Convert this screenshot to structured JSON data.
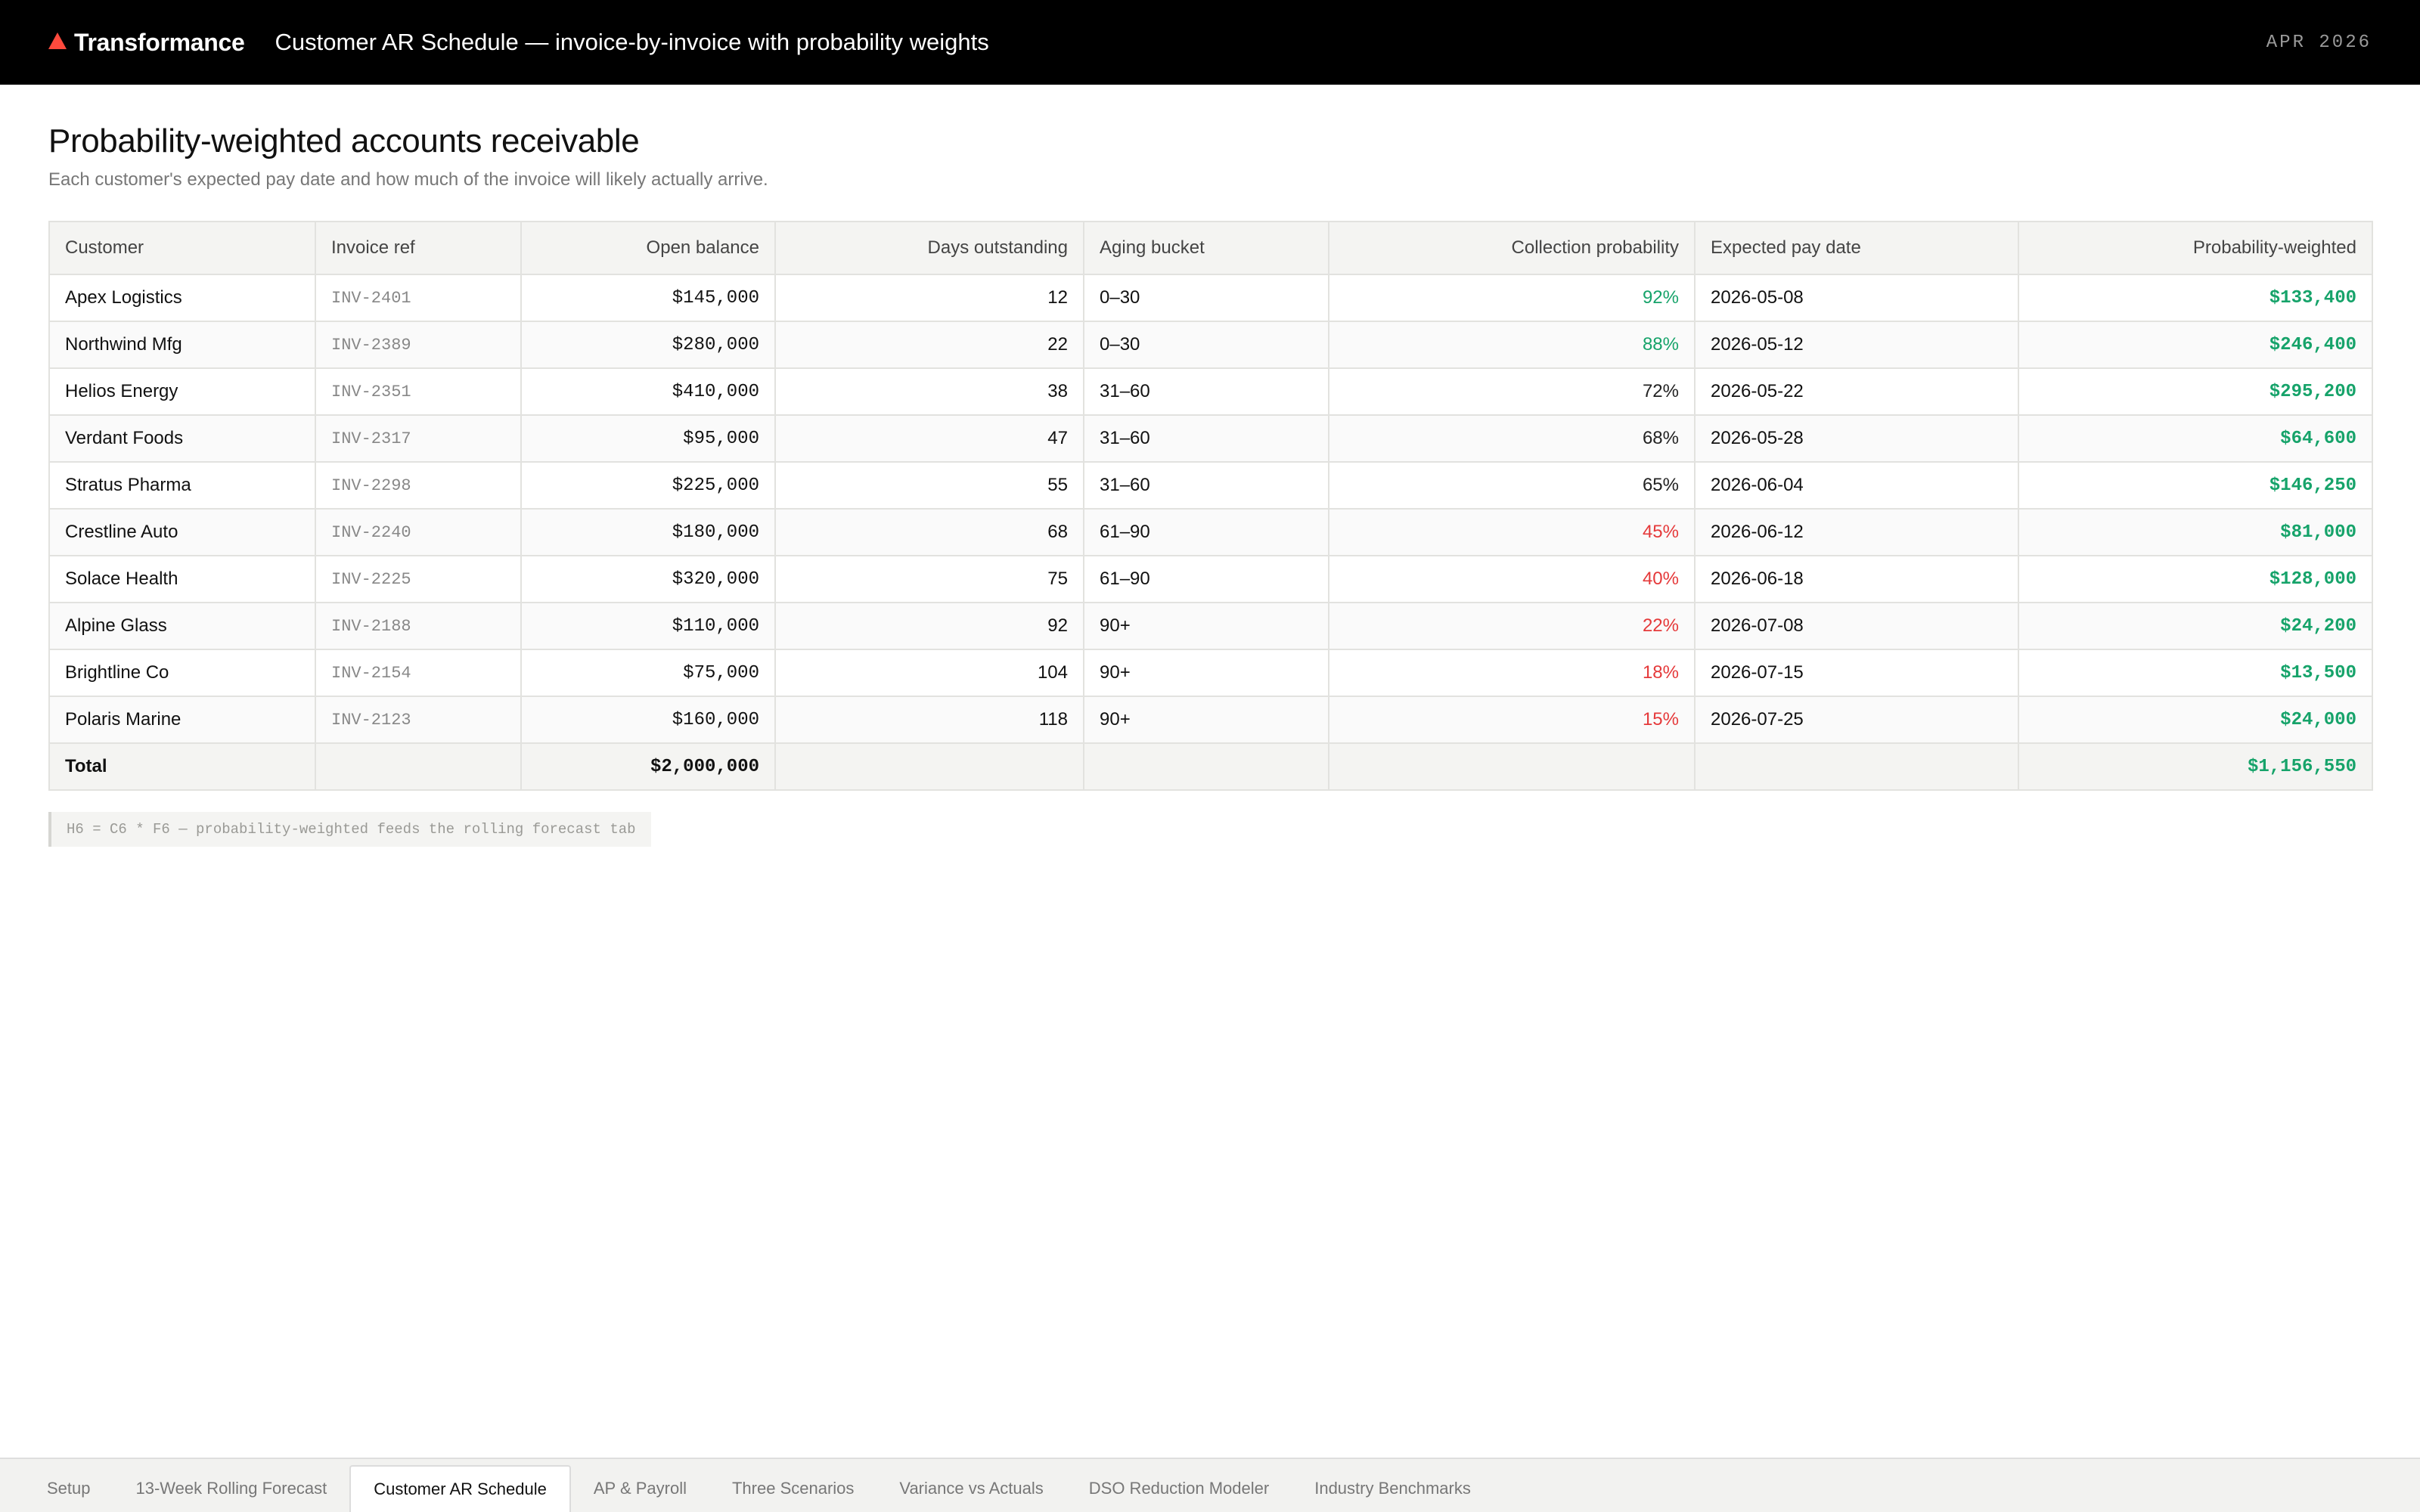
{
  "header": {
    "brand": "Transformance",
    "title": "Customer AR Schedule — invoice-by-invoice with probability weights",
    "date": "APR 2026"
  },
  "page": {
    "title": "Probability-weighted accounts receivable",
    "subtitle": "Each customer's expected pay date and how much of the invoice will likely actually arrive."
  },
  "colors": {
    "green": "#16a36a",
    "red": "#e5393a",
    "neutral": "#222222"
  },
  "table": {
    "columns": [
      "Customer",
      "Invoice ref",
      "Open balance",
      "Days outstanding",
      "Aging bucket",
      "Collection probability",
      "Expected pay date",
      "Probability-weighted"
    ],
    "rows": [
      {
        "customer": "Apex Logistics",
        "ref": "INV-2401",
        "balance": "$145,000",
        "days": "12",
        "bucket": "0–30",
        "prob": "92%",
        "prob_level": "high",
        "date": "2026-05-08",
        "weighted": "$133,400"
      },
      {
        "customer": "Northwind Mfg",
        "ref": "INV-2389",
        "balance": "$280,000",
        "days": "22",
        "bucket": "0–30",
        "prob": "88%",
        "prob_level": "high",
        "date": "2026-05-12",
        "weighted": "$246,400"
      },
      {
        "customer": "Helios Energy",
        "ref": "INV-2351",
        "balance": "$410,000",
        "days": "38",
        "bucket": "31–60",
        "prob": "72%",
        "prob_level": "mid",
        "date": "2026-05-22",
        "weighted": "$295,200"
      },
      {
        "customer": "Verdant Foods",
        "ref": "INV-2317",
        "balance": "$95,000",
        "days": "47",
        "bucket": "31–60",
        "prob": "68%",
        "prob_level": "mid",
        "date": "2026-05-28",
        "weighted": "$64,600"
      },
      {
        "customer": "Stratus Pharma",
        "ref": "INV-2298",
        "balance": "$225,000",
        "days": "55",
        "bucket": "31–60",
        "prob": "65%",
        "prob_level": "mid",
        "date": "2026-06-04",
        "weighted": "$146,250"
      },
      {
        "customer": "Crestline Auto",
        "ref": "INV-2240",
        "balance": "$180,000",
        "days": "68",
        "bucket": "61–90",
        "prob": "45%",
        "prob_level": "low",
        "date": "2026-06-12",
        "weighted": "$81,000"
      },
      {
        "customer": "Solace Health",
        "ref": "INV-2225",
        "balance": "$320,000",
        "days": "75",
        "bucket": "61–90",
        "prob": "40%",
        "prob_level": "low",
        "date": "2026-06-18",
        "weighted": "$128,000"
      },
      {
        "customer": "Alpine Glass",
        "ref": "INV-2188",
        "balance": "$110,000",
        "days": "92",
        "bucket": "90+",
        "prob": "22%",
        "prob_level": "low",
        "date": "2026-07-08",
        "weighted": "$24,200"
      },
      {
        "customer": "Brightline Co",
        "ref": "INV-2154",
        "balance": "$75,000",
        "days": "104",
        "bucket": "90+",
        "prob": "18%",
        "prob_level": "low",
        "date": "2026-07-15",
        "weighted": "$13,500"
      },
      {
        "customer": "Polaris Marine",
        "ref": "INV-2123",
        "balance": "$160,000",
        "days": "118",
        "bucket": "90+",
        "prob": "15%",
        "prob_level": "low",
        "date": "2026-07-25",
        "weighted": "$24,000"
      }
    ],
    "total": {
      "label": "Total",
      "balance": "$2,000,000",
      "weighted": "$1,156,550"
    }
  },
  "formula_note": "H6 = C6 * F6 — probability-weighted feeds the rolling forecast tab",
  "tabs": [
    {
      "label": "Setup",
      "active": false
    },
    {
      "label": "13-Week Rolling Forecast",
      "active": false
    },
    {
      "label": "Customer AR Schedule",
      "active": true
    },
    {
      "label": "AP & Payroll",
      "active": false
    },
    {
      "label": "Three Scenarios",
      "active": false
    },
    {
      "label": "Variance vs Actuals",
      "active": false
    },
    {
      "label": "DSO Reduction Modeler",
      "active": false
    },
    {
      "label": "Industry Benchmarks",
      "active": false
    }
  ]
}
